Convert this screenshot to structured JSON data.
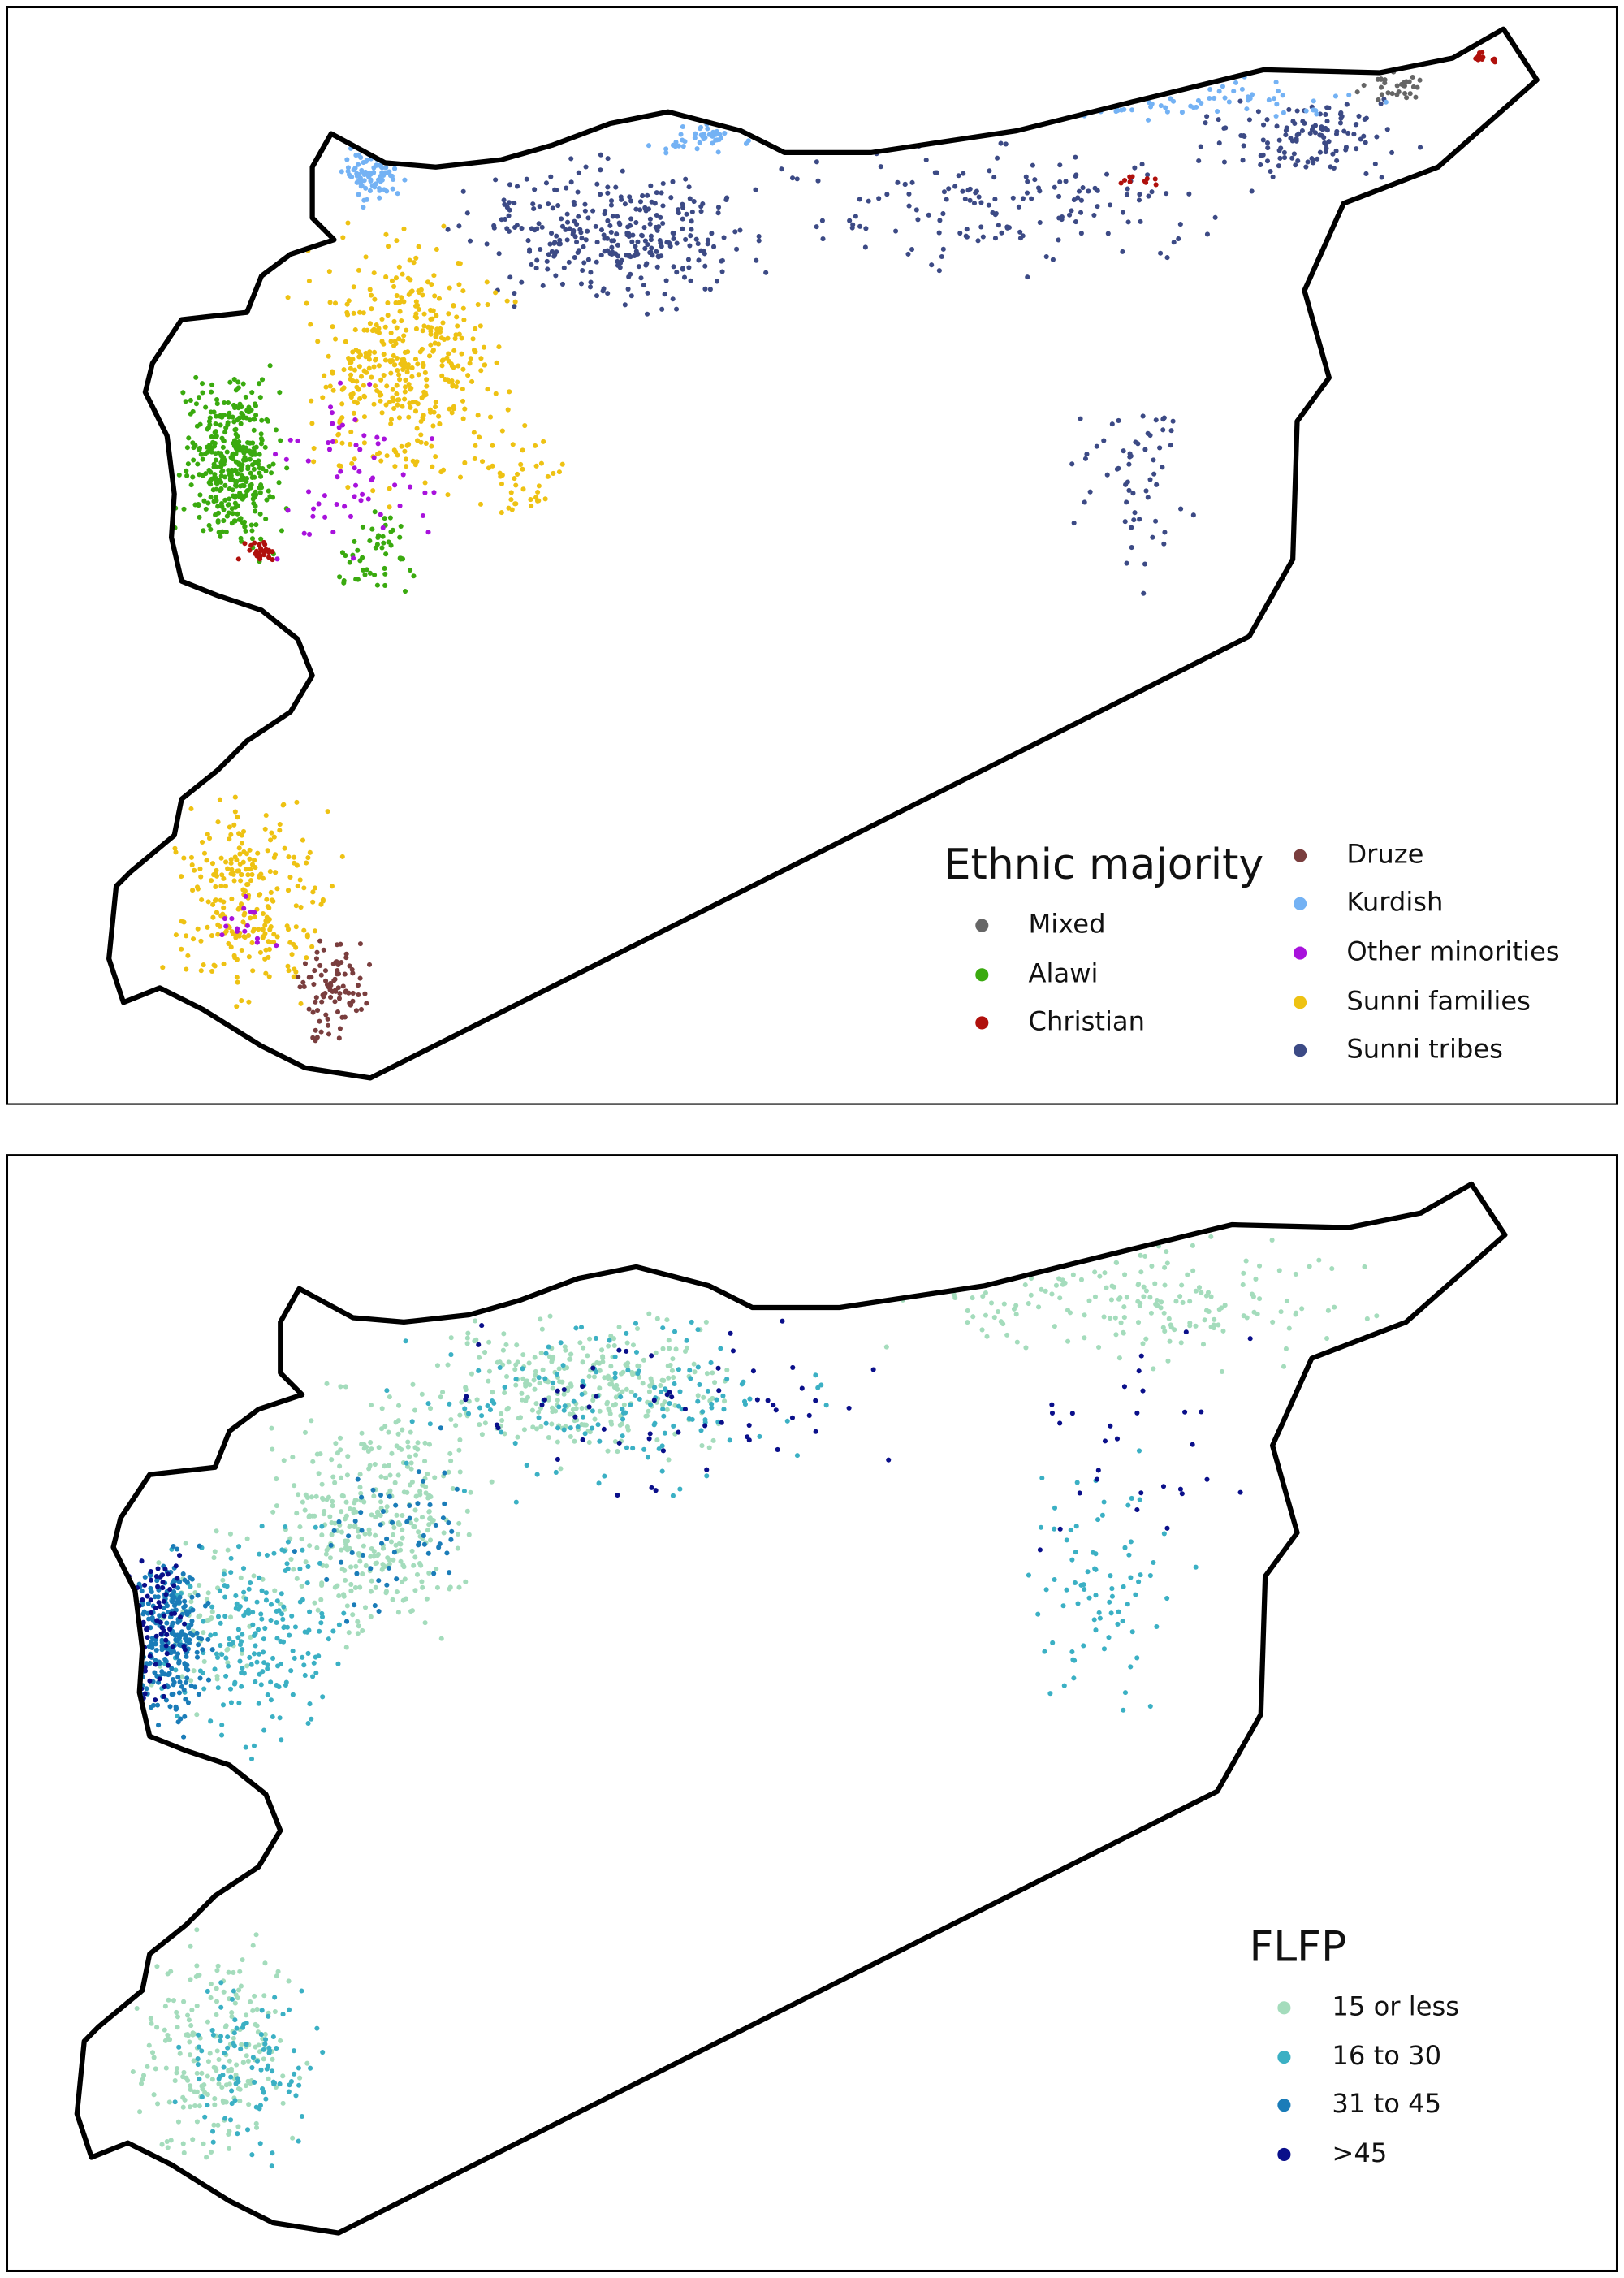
{
  "maps": [
    {
      "legend": {
        "title": "Ethnic majority",
        "items": [
          {
            "label": "Mixed",
            "color": "#666666"
          },
          {
            "label": "Alawi",
            "color": "#3aaa0f"
          },
          {
            "label": "Christian",
            "color": "#b0100c"
          },
          {
            "label": "Druze",
            "color": "#7a3e3e"
          },
          {
            "label": "Kurdish",
            "color": "#74b2f4"
          },
          {
            "label": "Other minorities",
            "color": "#a812dc"
          },
          {
            "label": "Sunni families",
            "color": "#eec213"
          },
          {
            "label": "Sunni tribes",
            "color": "#3c4a85"
          }
        ]
      }
    },
    {
      "legend": {
        "title": "FLFP",
        "items": [
          {
            "label": "15 or less",
            "color": "#a4dcbc"
          },
          {
            "label": "16 to 30",
            "color": "#3bb0c4"
          },
          {
            "label": "31 to 45",
            "color": "#1a7cb8"
          },
          {
            "label": ">45",
            "color": "#0a0f8a"
          }
        ]
      }
    }
  ]
}
